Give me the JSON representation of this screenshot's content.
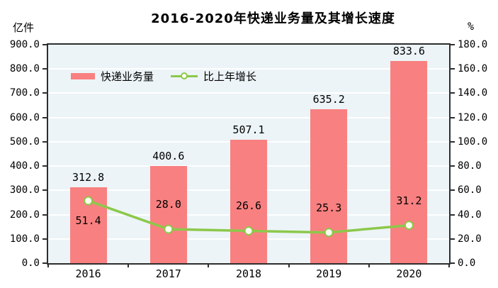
{
  "chart_data": {
    "type": "bar",
    "title": "2016-2020年快递业务量及其增长速度",
    "categories": [
      "2016",
      "2017",
      "2018",
      "2019",
      "2020"
    ],
    "series": [
      {
        "name": "快递业务量",
        "type": "bar",
        "axis": "left",
        "values": [
          312.8,
          400.6,
          507.1,
          635.2,
          833.6
        ],
        "color": "#F98080"
      },
      {
        "name": "比上年增长",
        "type": "line",
        "axis": "right",
        "values": [
          51.4,
          28.0,
          26.6,
          25.3,
          31.2
        ],
        "color": "#8CC84B",
        "marker_fill": "#FDFDF0"
      }
    ],
    "left_axis": {
      "label": "亿件",
      "min": 0,
      "max": 900,
      "step": 100,
      "tick_decimals": 1
    },
    "right_axis": {
      "label": "%",
      "min": 0,
      "max": 180,
      "step": 20,
      "tick_decimals": 1
    },
    "grid": true,
    "plot_background": "#ECF4F7",
    "gridline_color": "#ffffff",
    "legend_position": "top-left-inside"
  }
}
